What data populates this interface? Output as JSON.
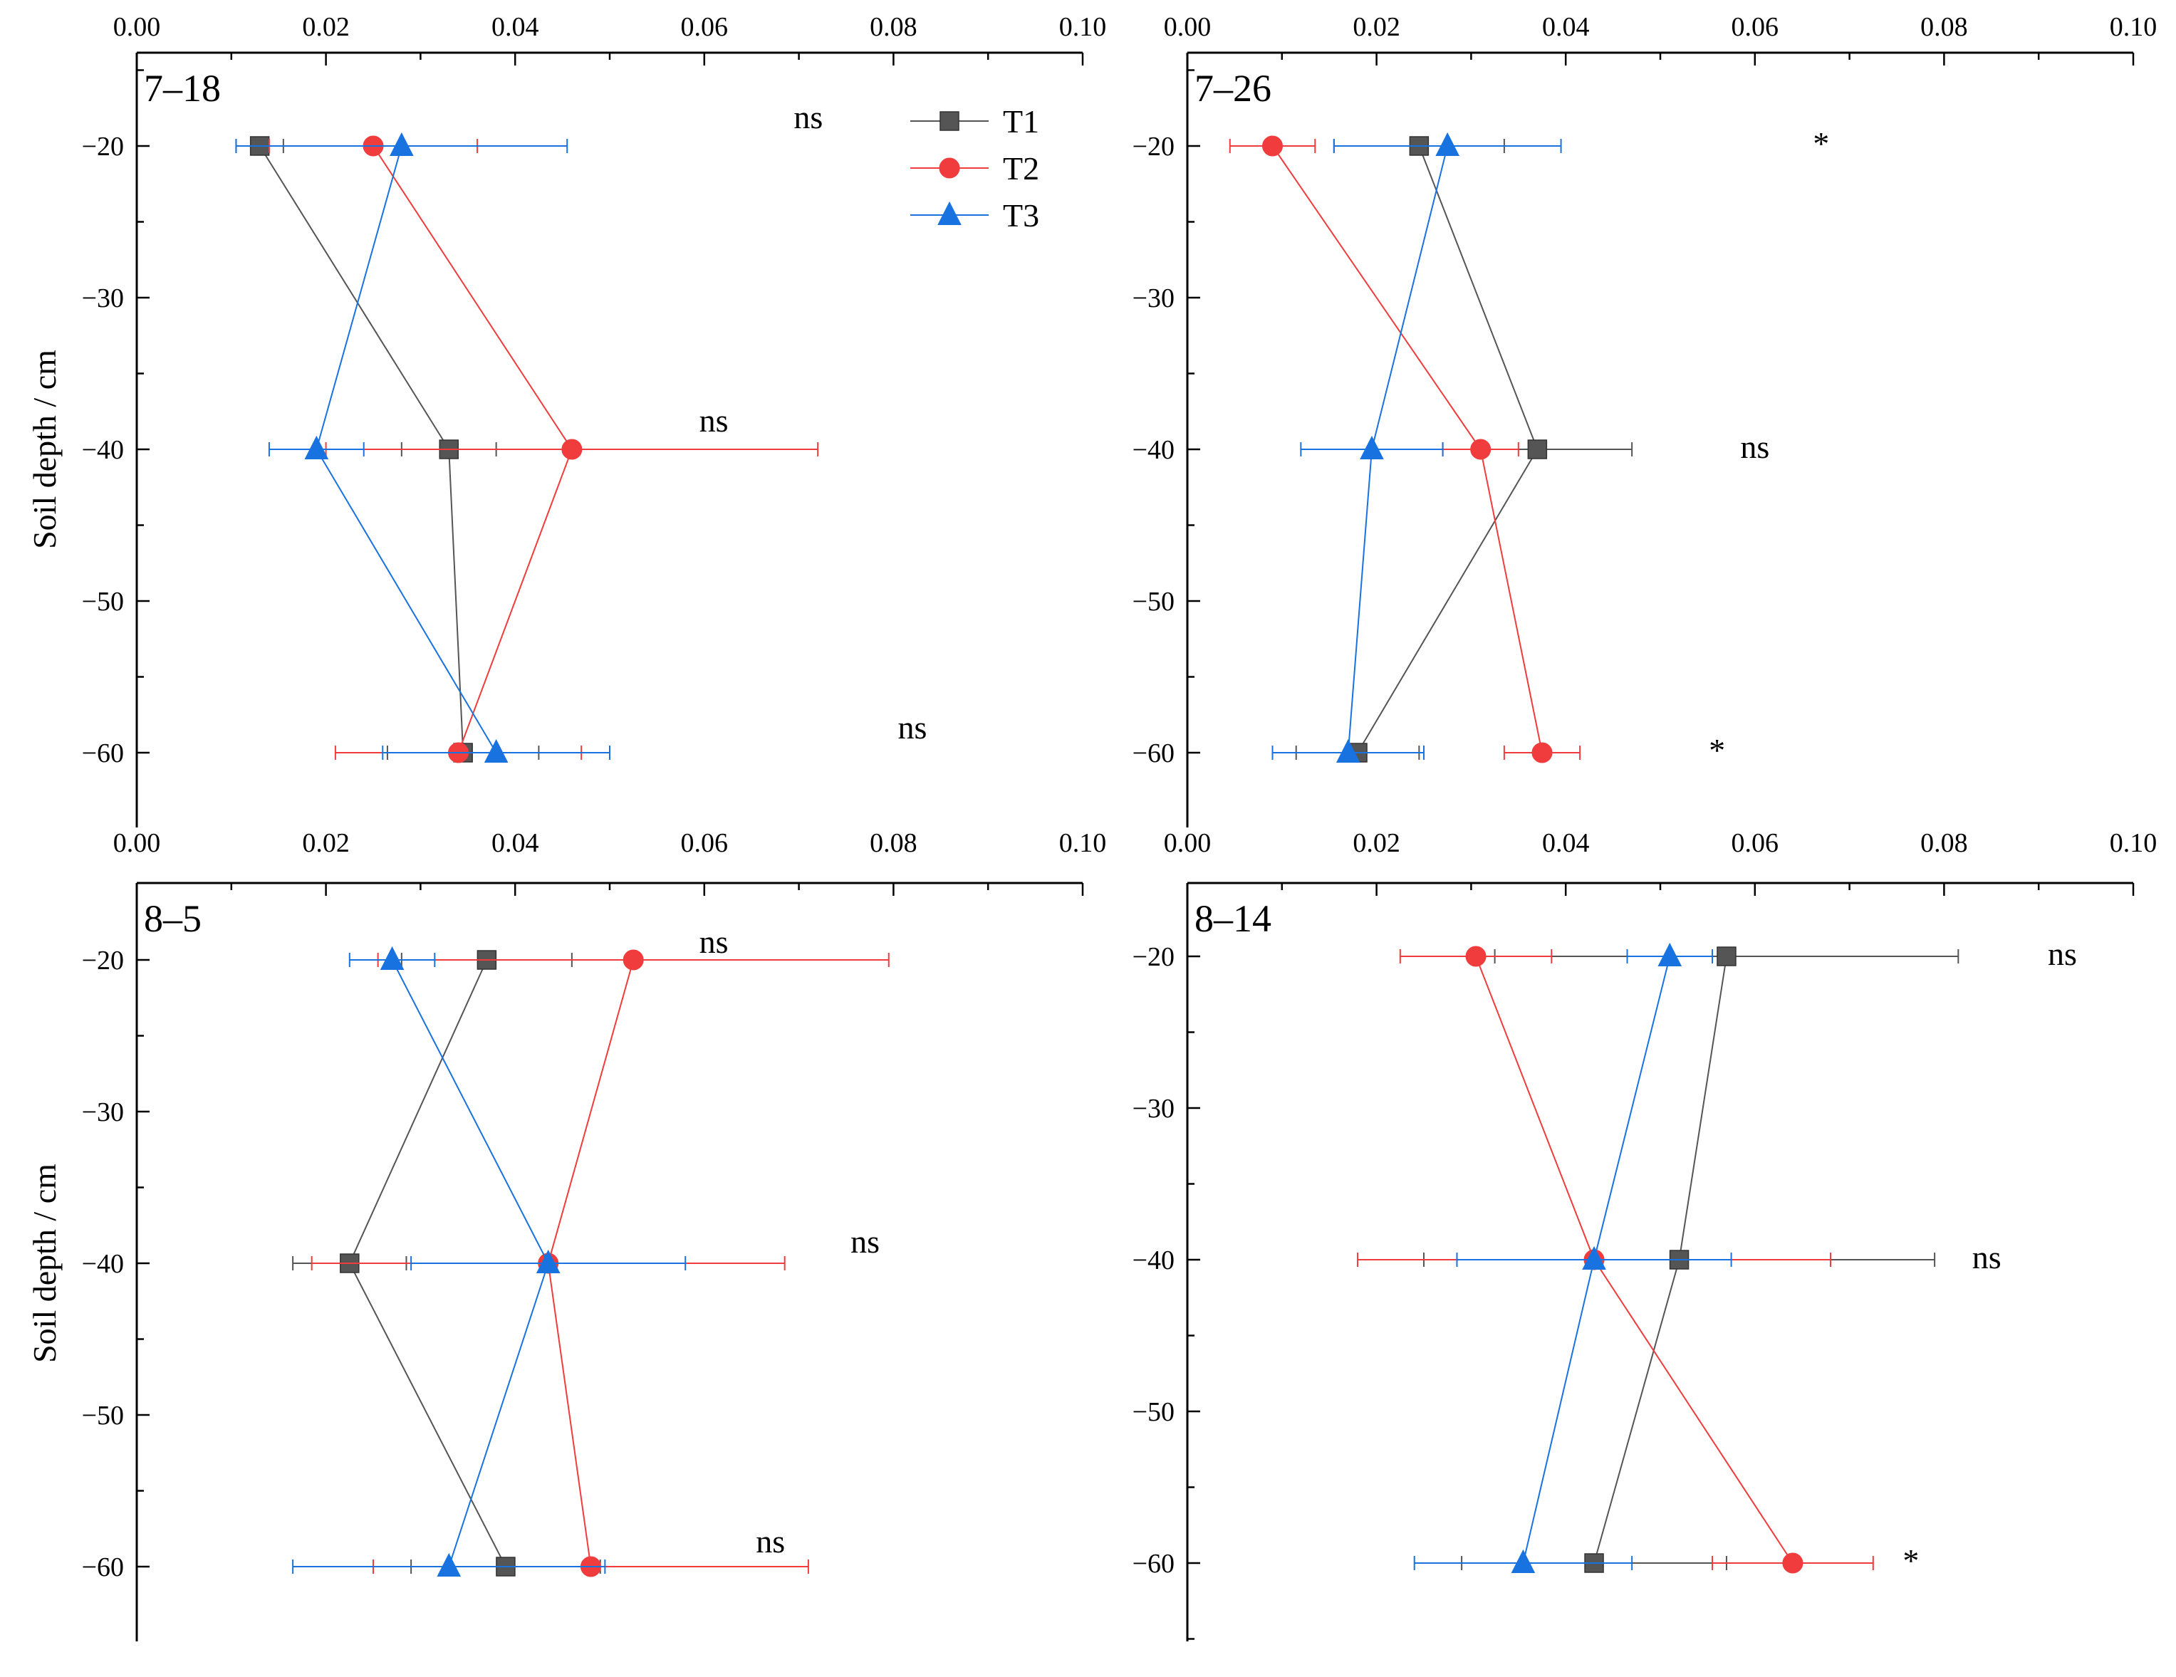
{
  "figure": {
    "ylabel": "Soil depth / cm",
    "legend_position": "top-right of first panel"
  },
  "series_meta": [
    {
      "name": "T1",
      "color": "#555555",
      "marker": "square"
    },
    {
      "name": "T2",
      "color": "#F03C3C",
      "marker": "circle"
    },
    {
      "name": "T3",
      "color": "#1873E0",
      "marker": "triangle"
    }
  ],
  "chart_data": [
    {
      "type": "line",
      "title": "7–18",
      "xlabel": "",
      "ylabel": "Soil depth / cm",
      "xlim": [
        0,
        0.1
      ],
      "ylim": [
        -65,
        -15
      ],
      "xticks": [
        "0.00",
        "0.02",
        "0.04",
        "0.06",
        "0.08",
        "0.10"
      ],
      "yticks": [
        "−20",
        "−30",
        "−40",
        "−50",
        "−60"
      ],
      "y": [
        -20,
        -40,
        -60
      ],
      "series": [
        {
          "name": "T1",
          "values": [
            0.013,
            0.033,
            0.0345
          ],
          "errors": [
            0.0025,
            0.005,
            0.008
          ]
        },
        {
          "name": "T2",
          "values": [
            0.025,
            0.046,
            0.034
          ],
          "errors": [
            0.011,
            0.026,
            0.013
          ]
        },
        {
          "name": "T3",
          "values": [
            0.028,
            0.019,
            0.038
          ],
          "errors": [
            0.0175,
            0.005,
            0.012
          ]
        }
      ],
      "significance": [
        "ns",
        "ns",
        "ns"
      ]
    },
    {
      "type": "line",
      "title": "7–26",
      "xlabel": "",
      "ylabel": "",
      "xlim": [
        0,
        0.1
      ],
      "ylim": [
        -65,
        -15
      ],
      "xticks": [
        "0.00",
        "0.02",
        "0.04",
        "0.06",
        "0.08",
        "0.10"
      ],
      "yticks": [
        "−20",
        "−30",
        "−40",
        "−50",
        "−60"
      ],
      "y": [
        -20,
        -40,
        -60
      ],
      "series": [
        {
          "name": "T1",
          "values": [
            0.0245,
            0.037,
            0.018
          ],
          "errors": [
            0.009,
            0.01,
            0.0065
          ]
        },
        {
          "name": "T2",
          "values": [
            0.009,
            0.031,
            0.0375
          ],
          "errors": [
            0.0045,
            0.004,
            0.004
          ]
        },
        {
          "name": "T3",
          "values": [
            0.0275,
            0.0195,
            0.017
          ],
          "errors": [
            0.012,
            0.0075,
            0.008
          ]
        }
      ],
      "significance": [
        "*",
        "ns",
        "*"
      ]
    },
    {
      "type": "line",
      "title": "8–5",
      "xlabel": "",
      "ylabel": "Soil depth / cm",
      "xlim": [
        0,
        0.1
      ],
      "ylim": [
        -65,
        -15
      ],
      "xticks": [
        "0.00",
        "0.02",
        "0.04",
        "0.06",
        "0.08",
        "0.10"
      ],
      "yticks": [
        "−20",
        "−30",
        "−40",
        "−50",
        "−60"
      ],
      "y": [
        -20,
        -40,
        -60
      ],
      "series": [
        {
          "name": "T1",
          "values": [
            0.037,
            0.0225,
            0.039
          ],
          "errors": [
            0.009,
            0.006,
            0.01
          ]
        },
        {
          "name": "T2",
          "values": [
            0.0525,
            0.0435,
            0.048
          ],
          "errors": [
            0.027,
            0.025,
            0.023
          ]
        },
        {
          "name": "T3",
          "values": [
            0.027,
            0.0435,
            0.033
          ],
          "errors": [
            0.0045,
            0.0145,
            0.0165
          ]
        }
      ],
      "significance": [
        "ns",
        "ns",
        "ns"
      ]
    },
    {
      "type": "line",
      "title": "8–14",
      "xlabel": "",
      "ylabel": "",
      "xlim": [
        0,
        0.1
      ],
      "ylim": [
        -65,
        -15
      ],
      "xticks": [
        "0.00",
        "0.02",
        "0.04",
        "0.06",
        "0.08",
        "0.10"
      ],
      "yticks": [
        "−20",
        "−30",
        "−40",
        "−50",
        "−60"
      ],
      "y": [
        -20,
        -40,
        -60
      ],
      "series": [
        {
          "name": "T1",
          "values": [
            0.057,
            0.052,
            0.043
          ],
          "errors": [
            0.0245,
            0.027,
            0.014
          ]
        },
        {
          "name": "T2",
          "values": [
            0.0305,
            0.043,
            0.064
          ],
          "errors": [
            0.008,
            0.025,
            0.0085
          ]
        },
        {
          "name": "T3",
          "values": [
            0.051,
            0.043,
            0.0355
          ],
          "errors": [
            0.0045,
            0.0145,
            0.0115
          ]
        }
      ],
      "significance": [
        "ns",
        "ns",
        "*"
      ]
    }
  ]
}
